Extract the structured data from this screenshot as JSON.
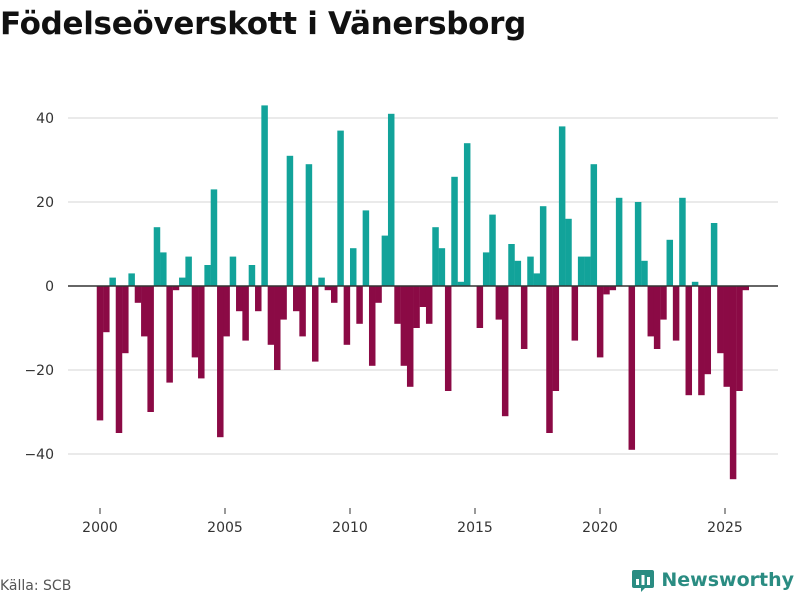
{
  "chart_data": {
    "type": "bar",
    "title": "Födelseöverskott i Vänersborg",
    "xlabel": "",
    "ylabel": "",
    "ylim": [
      -52,
      52
    ],
    "xlim": [
      1999.5,
      2026.2
    ],
    "x_ticks": [
      2000,
      2005,
      2010,
      2015,
      2020,
      2025
    ],
    "y_ticks": [
      -40,
      -20,
      0,
      20,
      40
    ],
    "grid": true,
    "positive_color": "#12a39a",
    "negative_color": "#8b0a45",
    "zero_line_color": "#333333",
    "grid_color": "#dddddd",
    "bar_width_years": 0.2,
    "values": [
      -32,
      -11,
      2,
      -35,
      -16,
      3,
      -4,
      -12,
      -30,
      14,
      8,
      -23,
      -1,
      2,
      7,
      -17,
      -22,
      5,
      23,
      -36,
      -12,
      7,
      -6,
      -13,
      5,
      -6,
      43,
      -14,
      -20,
      -8,
      31,
      -6,
      -12,
      29,
      -18,
      2,
      -1,
      -4,
      37,
      -14,
      9,
      -9,
      18,
      -19,
      -4,
      12,
      41,
      -9,
      -19,
      -24,
      -10,
      -5,
      -9,
      14,
      9,
      -25,
      26,
      1,
      34,
      0,
      -10,
      8,
      17,
      -8,
      -31,
      10,
      6,
      -15,
      7,
      3,
      19,
      -35,
      -25,
      38,
      16,
      -13,
      7,
      7,
      29,
      -17,
      -2,
      -1,
      21,
      0,
      -39,
      20,
      6,
      -12,
      -15,
      -8,
      11,
      -13,
      21,
      -26,
      1,
      -26,
      -21,
      15,
      -16,
      -24,
      -46,
      -25,
      -1
    ]
  },
  "footer": {
    "source": "Källa: SCB",
    "brand": "Newsworthy",
    "brand_icon": "newsworthy-logo-icon",
    "brand_color": "#2a8c82"
  }
}
